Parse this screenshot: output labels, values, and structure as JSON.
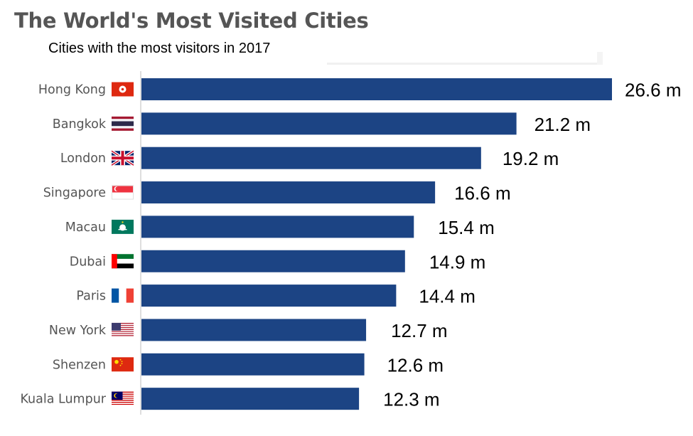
{
  "header": {
    "title": "The World's Most Visited Cities",
    "subtitle": "Cities with the most visitors in 2017"
  },
  "chart_data": {
    "type": "bar",
    "orientation": "horizontal",
    "title": "The World's Most Visited Cities",
    "subtitle": "Cities with the most visitors in 2017",
    "categories": [
      "Hong Kong",
      "Bangkok",
      "London",
      "Singapore",
      "Macau",
      "Dubai",
      "Paris",
      "New York",
      "Shenzen",
      "Kuala Lumpur"
    ],
    "values": [
      26.6,
      21.2,
      19.2,
      16.6,
      15.4,
      14.9,
      14.4,
      12.7,
      12.6,
      12.3
    ],
    "value_labels": [
      "26.6 m",
      "21.2 m",
      "19.2 m",
      "16.6 m",
      "15.4 m",
      "14.9 m",
      "14.4 m",
      "12.7 m",
      "12.6 m",
      "12.3 m"
    ],
    "flag_icons": [
      "hong-kong-flag-icon",
      "thailand-flag-icon",
      "uk-flag-icon",
      "singapore-flag-icon",
      "macau-flag-icon",
      "uae-flag-icon",
      "france-flag-icon",
      "usa-flag-icon",
      "china-flag-icon",
      "malaysia-flag-icon"
    ],
    "bar_color": "#1c4484",
    "xlim": [
      0,
      26.6
    ],
    "grid": false,
    "legend": "none"
  }
}
